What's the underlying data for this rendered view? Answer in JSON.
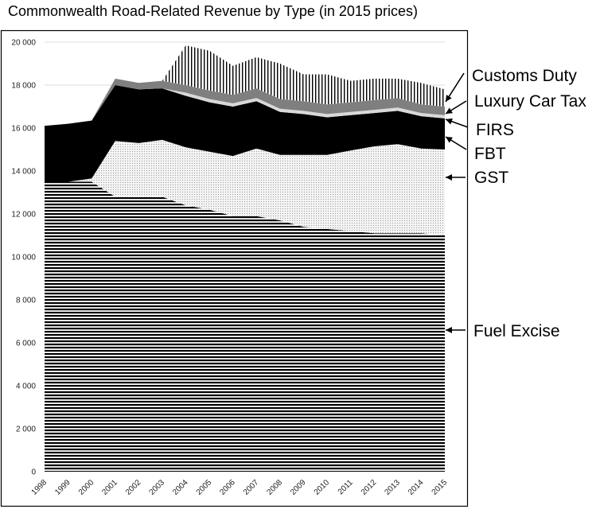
{
  "chart_data": {
    "type": "area",
    "stacked": true,
    "title": "Commonwealth Road-Related Revenue by Type (in 2015 prices)",
    "xlabel": "",
    "ylabel": "",
    "ylim": [
      0,
      20000
    ],
    "yticks": [
      0,
      2000,
      4000,
      6000,
      8000,
      10000,
      12000,
      14000,
      16000,
      18000,
      20000
    ],
    "ytick_labels": [
      "0",
      "2 000",
      "4 000",
      "6 000",
      "8 000",
      "10 000",
      "12 000",
      "14 000",
      "16 000",
      "18 000",
      "20 000"
    ],
    "grid": true,
    "legend_placement": "right (arrow callouts)",
    "categories": [
      "1998",
      "1999",
      "2000",
      "2001",
      "2002",
      "2003",
      "2004",
      "2005",
      "2006",
      "2007",
      "2008",
      "2009",
      "2010",
      "2011",
      "2012",
      "2013",
      "2014",
      "2015"
    ],
    "series": [
      {
        "name": "Fuel Excise",
        "pattern": "horizontal-lines",
        "values": [
          13500,
          13500,
          13500,
          12800,
          12800,
          12800,
          12400,
          12200,
          11900,
          11900,
          11700,
          11400,
          11300,
          11200,
          11100,
          11100,
          11100,
          11000
        ]
      },
      {
        "name": "GST",
        "pattern": "dots",
        "values": [
          0,
          0,
          150,
          2600,
          2500,
          2650,
          2700,
          2700,
          2800,
          3150,
          3050,
          3350,
          3450,
          3750,
          4050,
          4150,
          3950,
          4000
        ]
      },
      {
        "name": "FBT",
        "pattern": "solid-black",
        "values": [
          2600,
          2700,
          2700,
          2600,
          2500,
          2400,
          2400,
          2300,
          2300,
          2200,
          2000,
          1900,
          1750,
          1650,
          1550,
          1550,
          1500,
          1450
        ]
      },
      {
        "name": "FIRS",
        "pattern": "solid-light-gray",
        "values": [
          0,
          0,
          0,
          0,
          0,
          0,
          150,
          150,
          150,
          150,
          150,
          150,
          150,
          150,
          150,
          150,
          150,
          150
        ]
      },
      {
        "name": "Luxury Car Tax",
        "pattern": "solid-dark-gray",
        "values": [
          0,
          0,
          0,
          300,
          300,
          350,
          350,
          400,
          400,
          450,
          450,
          450,
          450,
          450,
          450,
          450,
          400,
          400
        ]
      },
      {
        "name": "Customs Duty",
        "pattern": "vertical-lines",
        "values": [
          0,
          0,
          0,
          0,
          0,
          0,
          1850,
          1850,
          1350,
          1450,
          1650,
          1250,
          1400,
          1000,
          1000,
          900,
          1000,
          800
        ]
      }
    ]
  }
}
